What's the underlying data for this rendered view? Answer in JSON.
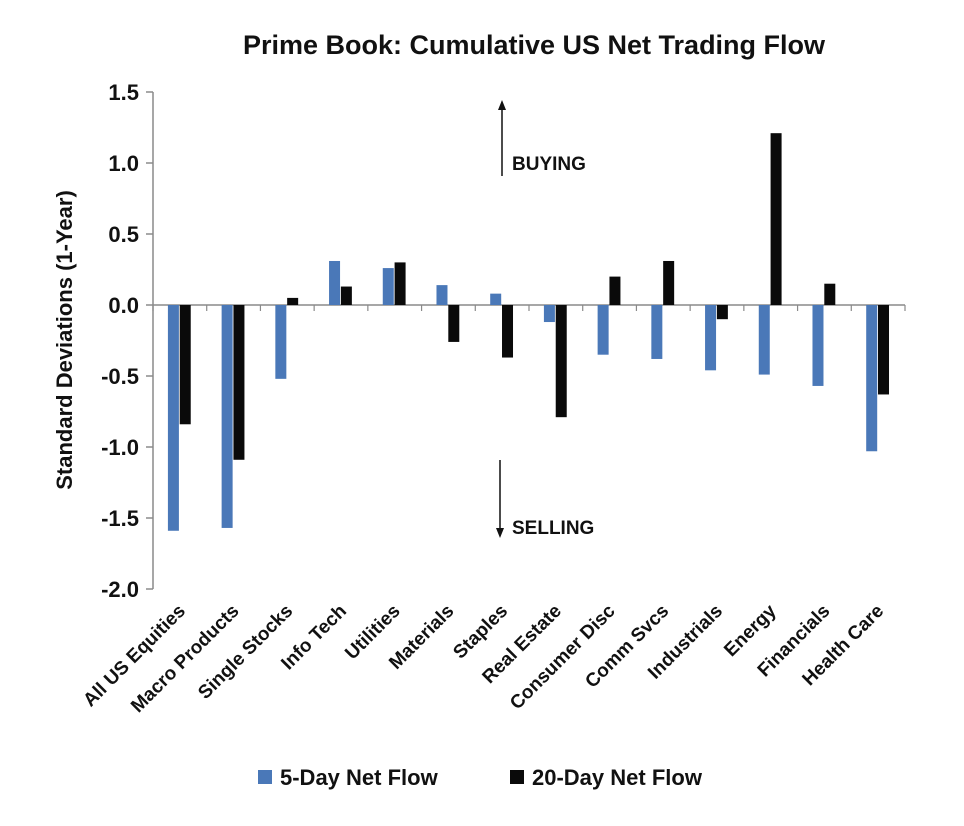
{
  "chart_data": {
    "type": "bar",
    "title": "Prime Book: Cumulative US Net Trading Flow",
    "ylabel": "Standard Deviations (1-Year)",
    "xlabel": "",
    "ylim": [
      -2.0,
      1.5
    ],
    "ytick_step": 0.5,
    "yticks": [
      "1.5",
      "1.0",
      "0.5",
      "0.0",
      "-0.5",
      "-1.0",
      "-1.5",
      "-2.0"
    ],
    "grid": false,
    "legend_position": "bottom",
    "categories": [
      "All US Equities",
      "Macro Products",
      "Single Stocks",
      "Info Tech",
      "Utilities",
      "Materials",
      "Staples",
      "Real Estate",
      "Consumer Disc",
      "Comm Svcs",
      "Industrials",
      "Energy",
      "Financials",
      "Health Care"
    ],
    "series": [
      {
        "name": "5-Day Net Flow",
        "color": "#4a78b8",
        "values": [
          -1.59,
          -1.57,
          -0.52,
          0.31,
          0.26,
          0.14,
          0.08,
          -0.12,
          -0.35,
          -0.38,
          -0.46,
          -0.49,
          -0.57,
          -1.03
        ]
      },
      {
        "name": "20-Day Net Flow",
        "color": "#0a0a0a",
        "values": [
          -0.84,
          -1.09,
          0.05,
          0.13,
          0.3,
          -0.26,
          -0.37,
          -0.79,
          0.2,
          0.31,
          -0.1,
          1.21,
          0.15,
          -0.63
        ]
      }
    ],
    "annotations": [
      {
        "text": "BUYING",
        "arrow": "up"
      },
      {
        "text": "SELLING",
        "arrow": "down"
      }
    ]
  }
}
